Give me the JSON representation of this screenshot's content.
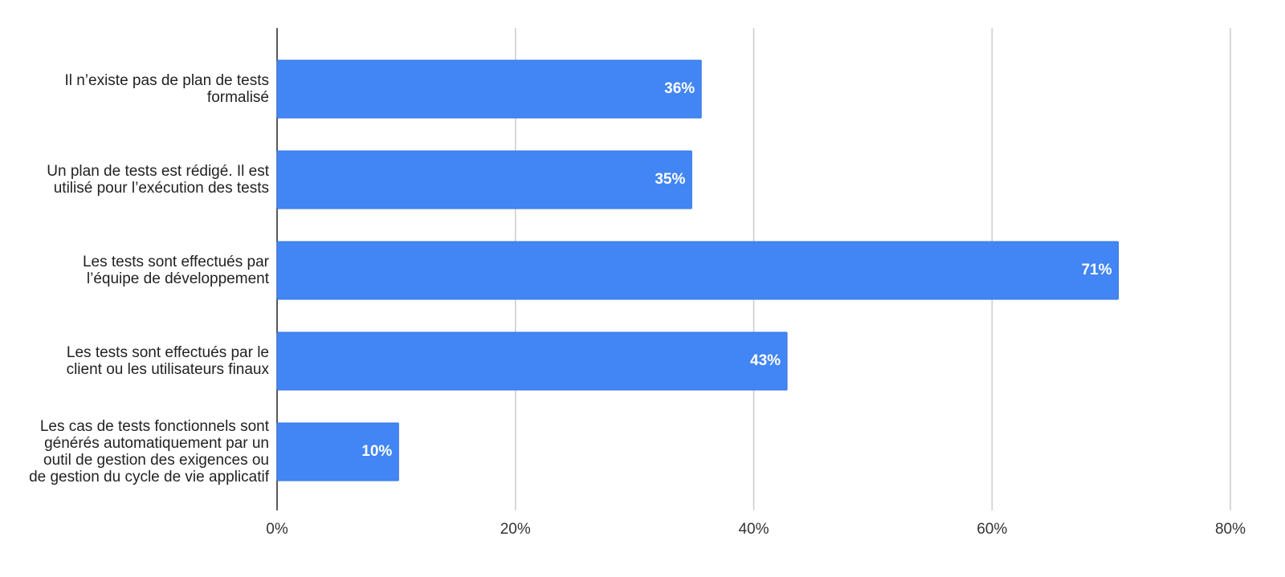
{
  "chart_data": {
    "type": "bar",
    "orientation": "horizontal",
    "categories": [
      "Il n’existe pas de plan de tests formalisé",
      "Un plan de tests est rédigé. Il est utilisé pour l’exécution des tests",
      "Les tests sont effectués par l’équipe de développement",
      "Les tests sont effectués par le client ou les utilisateurs finaux",
      "Les cas de tests fonctionnels sont générés automatiquement par un outil de gestion des exigences ou de gestion du cycle de vie applicatif"
    ],
    "values": [
      35.6,
      34.8,
      70.6,
      42.8,
      10.2
    ],
    "value_labels": [
      "36%",
      "35%",
      "71%",
      "43%",
      "10%"
    ],
    "color": "#4285f4",
    "xlim": [
      0,
      80
    ],
    "xticks": [
      {
        "value": 0,
        "label": "0%"
      },
      {
        "value": 20,
        "label": "20%"
      },
      {
        "value": 40,
        "label": "40%"
      },
      {
        "value": 60,
        "label": "60%"
      },
      {
        "value": 80,
        "label": "80%"
      }
    ],
    "grid": true
  }
}
